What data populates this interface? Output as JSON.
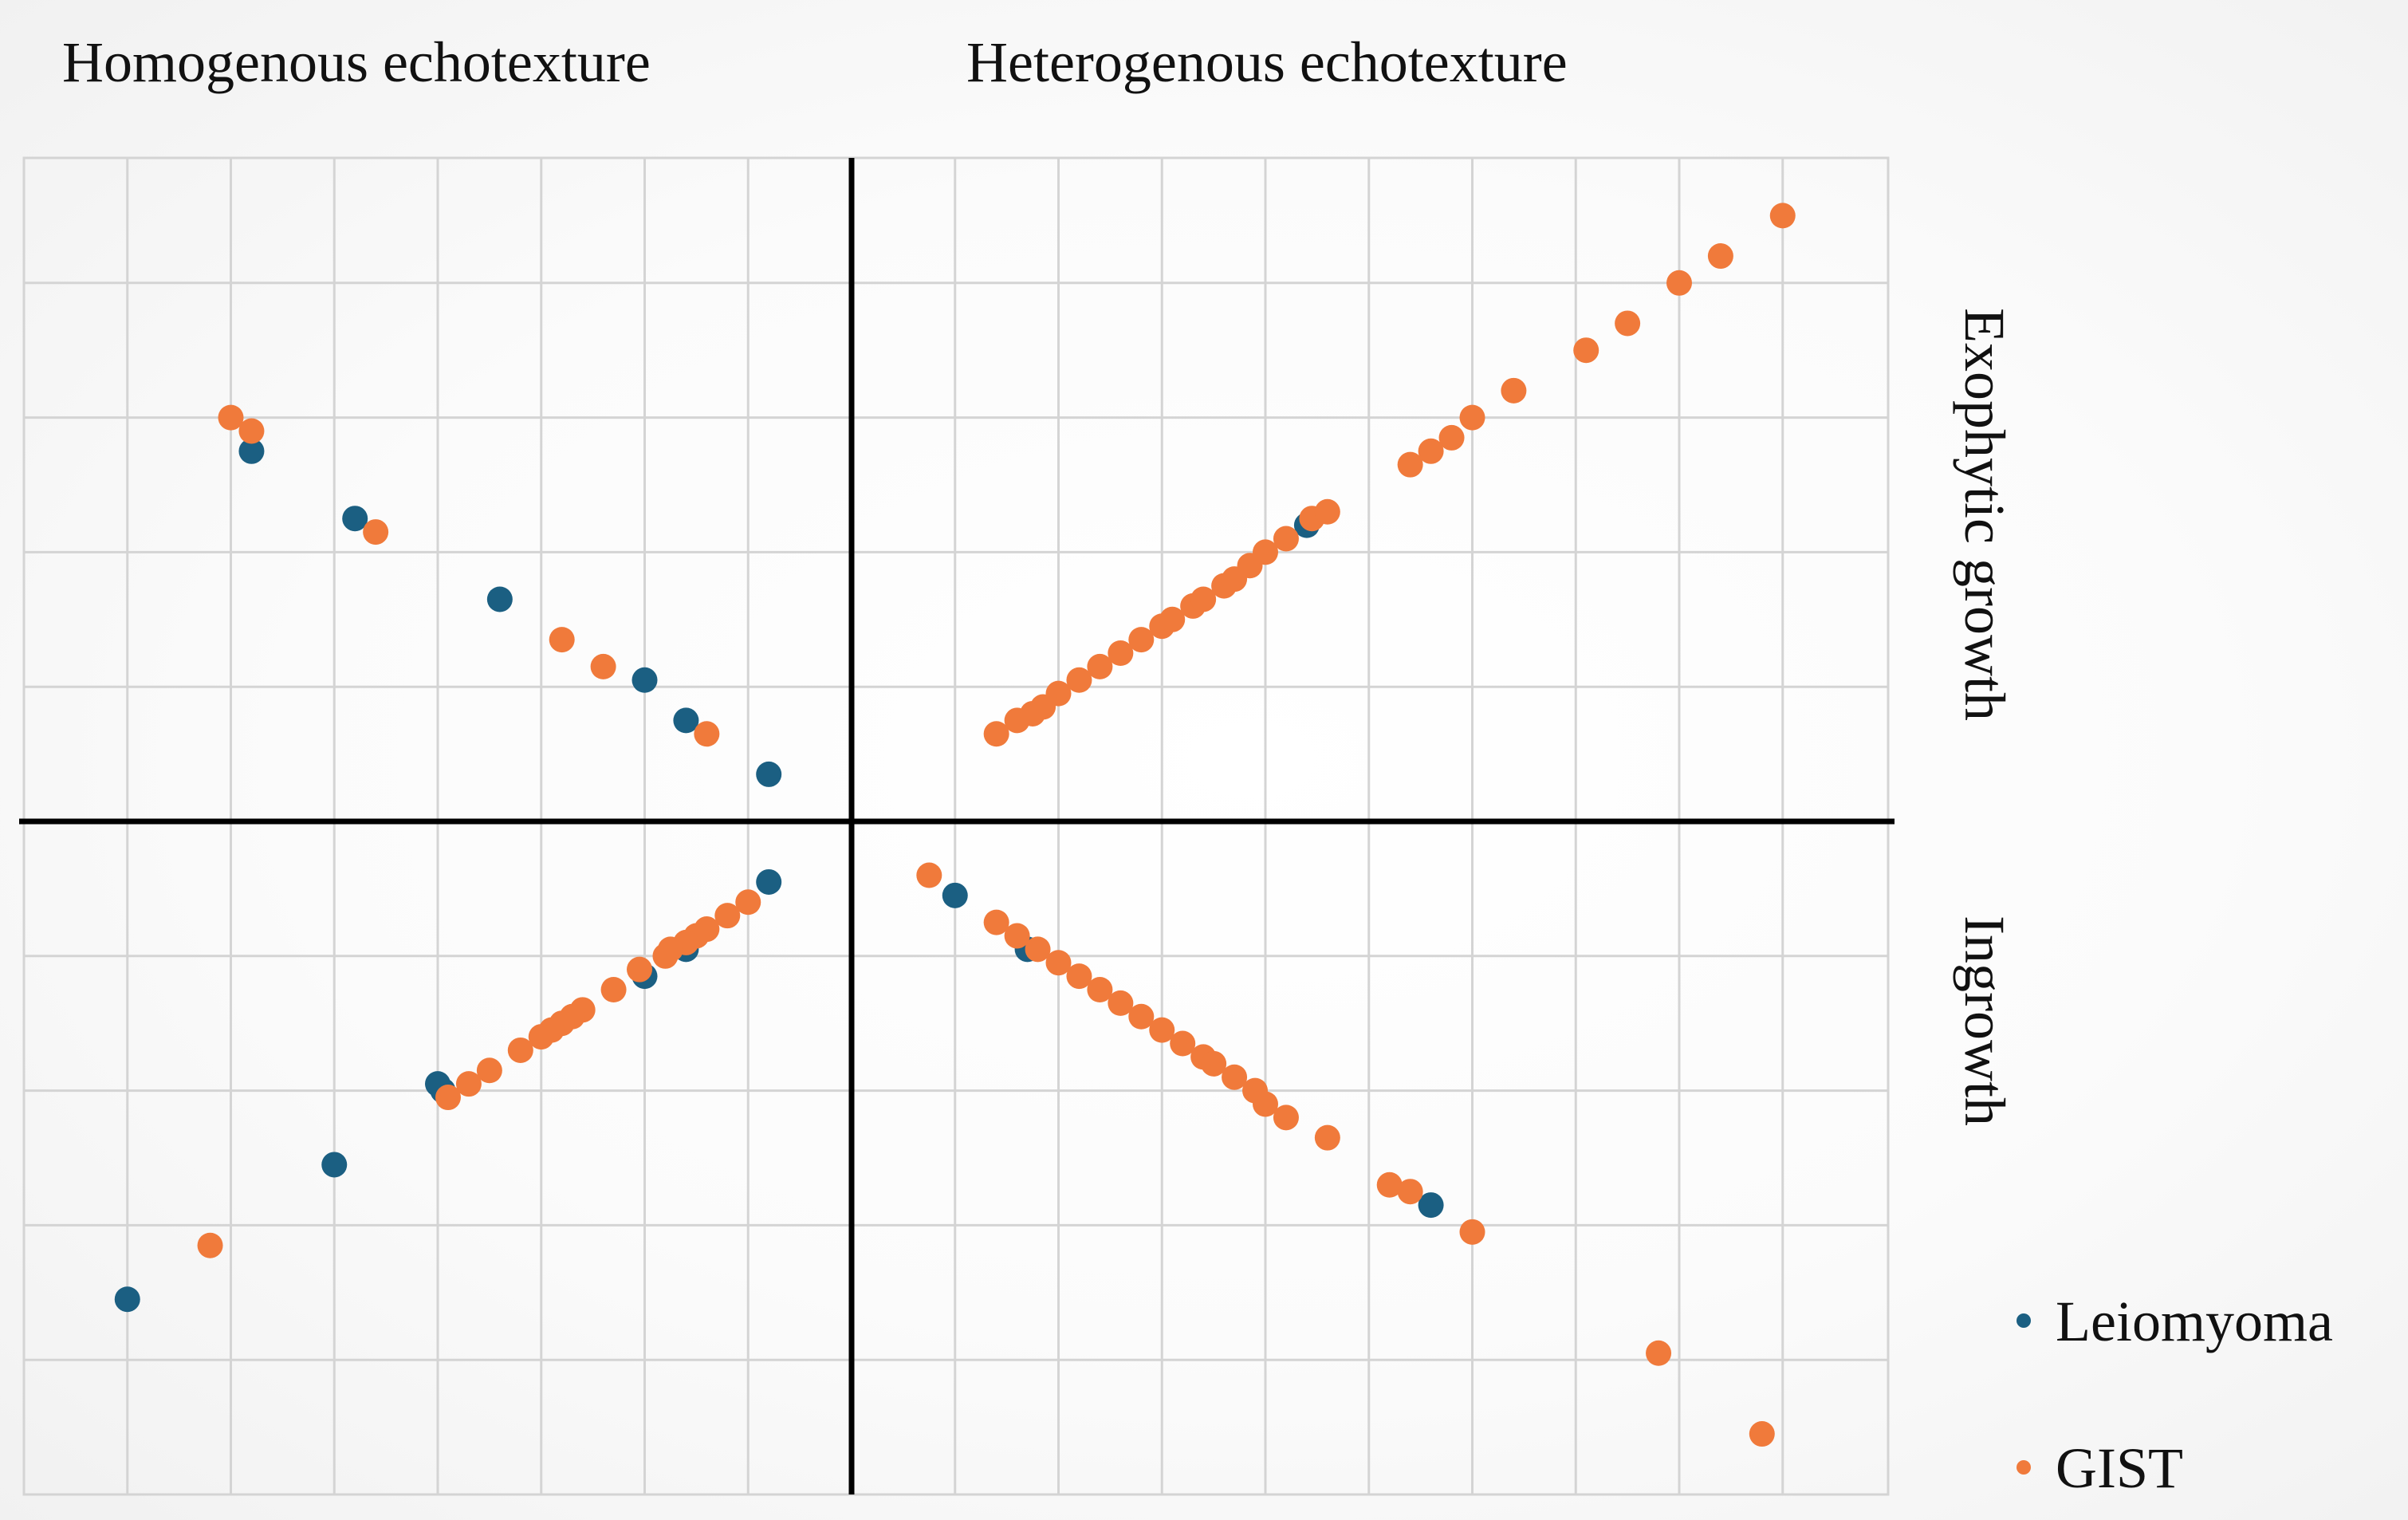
{
  "quadrant_labels": {
    "top_left": "Homogenous echotexture",
    "top_right": "Heterogenous echotexture",
    "right_upper": "Exophytic growth",
    "right_lower": "Ingrowth"
  },
  "colors": {
    "leiomyoma": "#1b5f82",
    "gist": "#f07a3b",
    "grid": "#d4d4d4",
    "axis": "#000000"
  },
  "chart_data": {
    "type": "scatter",
    "title": "",
    "xlabel": "",
    "ylabel": "",
    "xlim": [
      -8,
      10
    ],
    "ylim": [
      -5,
      5
    ],
    "grid": true,
    "legend_position": "bottom-right",
    "series": [
      {
        "name": "Leiomyoma",
        "color": "#1b5f82",
        "points": [
          [
            -5.8,
            2.75
          ],
          [
            -4.8,
            2.25
          ],
          [
            -3.4,
            1.65
          ],
          [
            -2.0,
            1.05
          ],
          [
            -1.6,
            0.75
          ],
          [
            -0.8,
            0.35
          ],
          [
            -0.8,
            -0.45
          ],
          [
            -1.6,
            -0.95
          ],
          [
            -2.0,
            -1.15
          ],
          [
            -3.95,
            -2.0
          ],
          [
            -4.0,
            -1.95
          ],
          [
            -5.0,
            -2.55
          ],
          [
            -7.0,
            -3.55
          ],
          [
            1.0,
            -0.55
          ],
          [
            1.7,
            -0.95
          ],
          [
            4.4,
            2.2
          ],
          [
            5.6,
            -2.85
          ]
        ]
      },
      {
        "name": "GIST",
        "color": "#f07a3b",
        "points": [
          [
            -6.0,
            3.0
          ],
          [
            -5.8,
            2.9
          ],
          [
            -4.6,
            2.15
          ],
          [
            -2.8,
            1.35
          ],
          [
            -2.4,
            1.15
          ],
          [
            -1.4,
            0.65
          ],
          [
            -1.0,
            -0.6
          ],
          [
            -1.2,
            -0.7
          ],
          [
            -1.4,
            -0.8
          ],
          [
            -1.5,
            -0.85
          ],
          [
            -1.6,
            -0.9
          ],
          [
            -1.75,
            -0.95
          ],
          [
            -1.8,
            -1.0
          ],
          [
            -2.05,
            -1.1
          ],
          [
            -2.3,
            -1.25
          ],
          [
            -2.6,
            -1.4
          ],
          [
            -2.7,
            -1.45
          ],
          [
            -2.8,
            -1.5
          ],
          [
            -2.9,
            -1.55
          ],
          [
            -3.0,
            -1.6
          ],
          [
            -3.2,
            -1.7
          ],
          [
            -3.5,
            -1.85
          ],
          [
            -3.7,
            -1.95
          ],
          [
            -3.9,
            -2.05
          ],
          [
            -6.2,
            -3.15
          ],
          [
            0.75,
            -0.4
          ],
          [
            1.4,
            -0.75
          ],
          [
            1.6,
            -0.85
          ],
          [
            1.8,
            -0.95
          ],
          [
            2.0,
            -1.05
          ],
          [
            2.2,
            -1.15
          ],
          [
            2.4,
            -1.25
          ],
          [
            2.6,
            -1.35
          ],
          [
            2.8,
            -1.45
          ],
          [
            3.0,
            -1.55
          ],
          [
            3.2,
            -1.65
          ],
          [
            3.4,
            -1.75
          ],
          [
            3.5,
            -1.8
          ],
          [
            3.7,
            -1.9
          ],
          [
            3.9,
            -2.0
          ],
          [
            4.0,
            -2.1
          ],
          [
            4.2,
            -2.2
          ],
          [
            4.6,
            -2.35
          ],
          [
            5.2,
            -2.7
          ],
          [
            5.4,
            -2.75
          ],
          [
            6.0,
            -3.05
          ],
          [
            7.8,
            -3.95
          ],
          [
            8.8,
            -4.55
          ],
          [
            1.4,
            0.65
          ],
          [
            1.6,
            0.75
          ],
          [
            1.75,
            0.8
          ],
          [
            1.85,
            0.85
          ],
          [
            2.0,
            0.95
          ],
          [
            2.2,
            1.05
          ],
          [
            2.4,
            1.15
          ],
          [
            2.6,
            1.25
          ],
          [
            2.8,
            1.35
          ],
          [
            3.0,
            1.45
          ],
          [
            3.1,
            1.5
          ],
          [
            3.3,
            1.6
          ],
          [
            3.4,
            1.65
          ],
          [
            3.6,
            1.75
          ],
          [
            3.7,
            1.8
          ],
          [
            3.85,
            1.9
          ],
          [
            4.0,
            2.0
          ],
          [
            4.2,
            2.1
          ],
          [
            4.45,
            2.25
          ],
          [
            4.6,
            2.3
          ],
          [
            5.4,
            2.65
          ],
          [
            5.6,
            2.75
          ],
          [
            5.8,
            2.85
          ],
          [
            6.0,
            3.0
          ],
          [
            6.4,
            3.2
          ],
          [
            7.1,
            3.5
          ],
          [
            7.5,
            3.7
          ],
          [
            8.0,
            4.0
          ],
          [
            8.4,
            4.2
          ],
          [
            9.0,
            4.5
          ]
        ]
      }
    ]
  }
}
